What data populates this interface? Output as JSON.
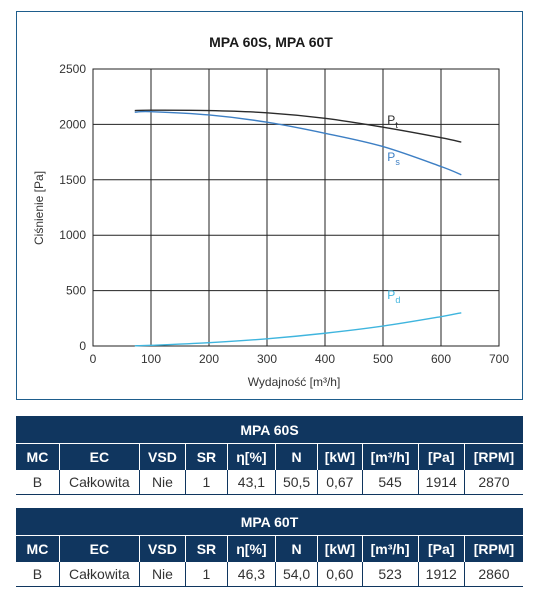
{
  "chart_data": {
    "type": "line",
    "title": "MPA 60S, MPA 60T",
    "xlabel": "Wydajność [m³/h]",
    "ylabel": "Ciśnienie [Pa]",
    "xlim": [
      0,
      700
    ],
    "ylim": [
      0,
      2500
    ],
    "xticks": [
      "0",
      "100",
      "200",
      "300",
      "400",
      "500",
      "600",
      "700"
    ],
    "yticks": [
      "0",
      "500",
      "1000",
      "1500",
      "2000",
      "2500"
    ],
    "grid": true,
    "series": [
      {
        "name": "Pt",
        "label_main": "P",
        "label_sub": "t",
        "color": "#2b2b2b",
        "x": [
          72,
          100,
          200,
          300,
          400,
          500,
          600,
          635
        ],
        "y": [
          2125,
          2128,
          2125,
          2105,
          2055,
          1975,
          1880,
          1840
        ]
      },
      {
        "name": "Ps",
        "label_main": "P",
        "label_sub": "s",
        "color": "#3d7fc4",
        "x": [
          72,
          100,
          200,
          300,
          400,
          500,
          600,
          635
        ],
        "y": [
          2110,
          2115,
          2085,
          2020,
          1920,
          1800,
          1620,
          1545
        ]
      },
      {
        "name": "Pd",
        "label_main": "P",
        "label_sub": "d",
        "color": "#3fb5de",
        "x": [
          72,
          100,
          200,
          300,
          400,
          500,
          600,
          635
        ],
        "y": [
          2,
          6,
          30,
          65,
          115,
          180,
          265,
          300
        ]
      }
    ]
  },
  "tables": [
    {
      "title": "MPA 60S",
      "headers": [
        "MC",
        "EC",
        "VSD",
        "SR",
        "η[%]",
        "N",
        "[kW]",
        "[m³/h]",
        "[Pa]",
        "[RPM]"
      ],
      "values": [
        "B",
        "Całkowita",
        "Nie",
        "1",
        "43,1",
        "50,5",
        "0,67",
        "545",
        "1914",
        "2870"
      ]
    },
    {
      "title": "MPA 60T",
      "headers": [
        "MC",
        "EC",
        "VSD",
        "SR",
        "η[%]",
        "N",
        "[kW]",
        "[m³/h]",
        "[Pa]",
        "[RPM]"
      ],
      "values": [
        "B",
        "Całkowita",
        "Nie",
        "1",
        "46,3",
        "54,0",
        "0,60",
        "523",
        "1912",
        "2860"
      ]
    }
  ]
}
